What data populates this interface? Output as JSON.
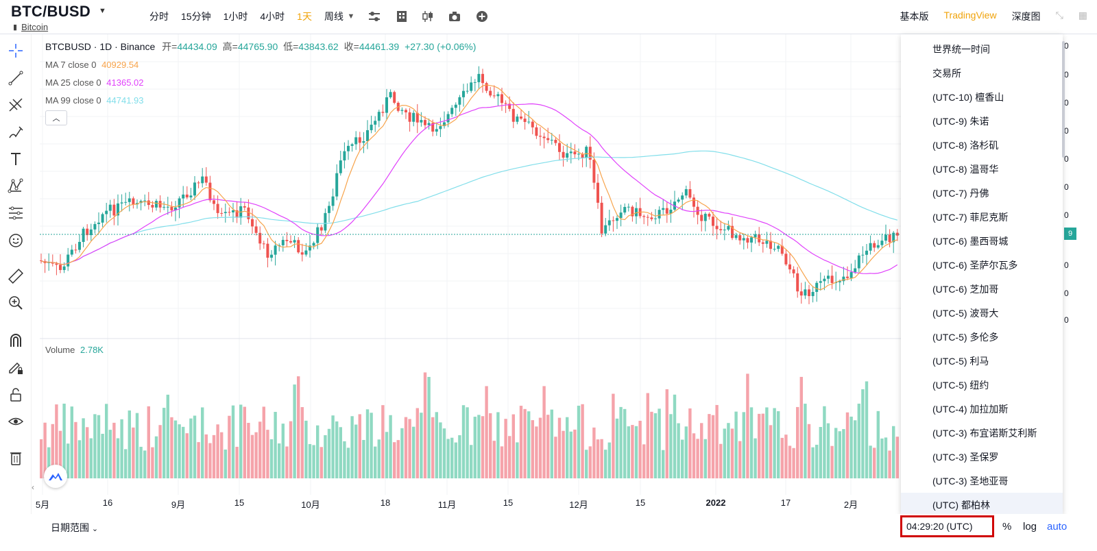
{
  "header": {
    "symbol": "BTC/BUSD",
    "subtitle_link": "Bitcoin",
    "intervals": [
      "分时",
      "15分钟",
      "1小时",
      "4小时",
      "1天",
      "周线"
    ],
    "active_interval_index": 4,
    "views": [
      "基本版",
      "TradingView",
      "深度图"
    ]
  },
  "legend": {
    "title": "BTCBUSD · 1D · Binance",
    "open_label": "开=",
    "open": "44434.09",
    "high_label": "高=",
    "high": "44765.90",
    "low_label": "低=",
    "low": "43843.62",
    "close_label": "收=",
    "close": "44461.39",
    "change": "+27.30 (+0.06%)"
  },
  "ma": [
    {
      "label": "MA 7 close 0",
      "value": "40929.54",
      "color": "#f7a34a"
    },
    {
      "label": "MA 25 close 0",
      "value": "41365.02",
      "color": "#e040fb"
    },
    {
      "label": "MA 99 close 0",
      "value": "44741.93",
      "color": "#80deea"
    }
  ],
  "volume": {
    "label": "Volume",
    "value": "2.78K"
  },
  "xaxis": {
    "labels": [
      "5月",
      "16",
      "9月",
      "15",
      "10月",
      "18",
      "11月",
      "15",
      "12月",
      "15",
      "2022",
      "17",
      "2月"
    ]
  },
  "bottom": {
    "date_range": "日期范围",
    "clock": "04:29:20 (UTC)",
    "percent": "%",
    "log": "log",
    "auto": "auto"
  },
  "timezones": [
    "世界统一时间",
    "交易所",
    "(UTC-10) 檀香山",
    "(UTC-9) 朱诺",
    "(UTC-8) 洛杉矶",
    "(UTC-8) 温哥华",
    "(UTC-7) 丹佛",
    "(UTC-7) 菲尼克斯",
    "(UTC-6) 墨西哥城",
    "(UTC-6) 圣萨尔瓦多",
    "(UTC-6) 芝加哥",
    "(UTC-5) 波哥大",
    "(UTC-5) 多伦多",
    "(UTC-5) 利马",
    "(UTC-5) 纽约",
    "(UTC-4) 加拉加斯",
    "(UTC-3) 布宜诺斯艾利斯",
    "(UTC-3) 圣保罗",
    "(UTC-3) 圣地亚哥",
    "(UTC) 都柏林"
  ],
  "price_tag": "9",
  "colors": {
    "up": "#26a69a",
    "down": "#ef5350",
    "accent": "#f0a30a",
    "blue": "#2962ff"
  },
  "icons": [
    "crosshair-icon",
    "trend-line-icon",
    "fib-icon",
    "brush-icon",
    "text-icon",
    "pattern-icon",
    "measure-icon",
    "emoji-icon",
    "ruler-icon",
    "zoom-in-icon",
    "magnet-icon",
    "lock-draw-icon",
    "lock-icon",
    "eye-icon",
    "trash-icon"
  ]
}
